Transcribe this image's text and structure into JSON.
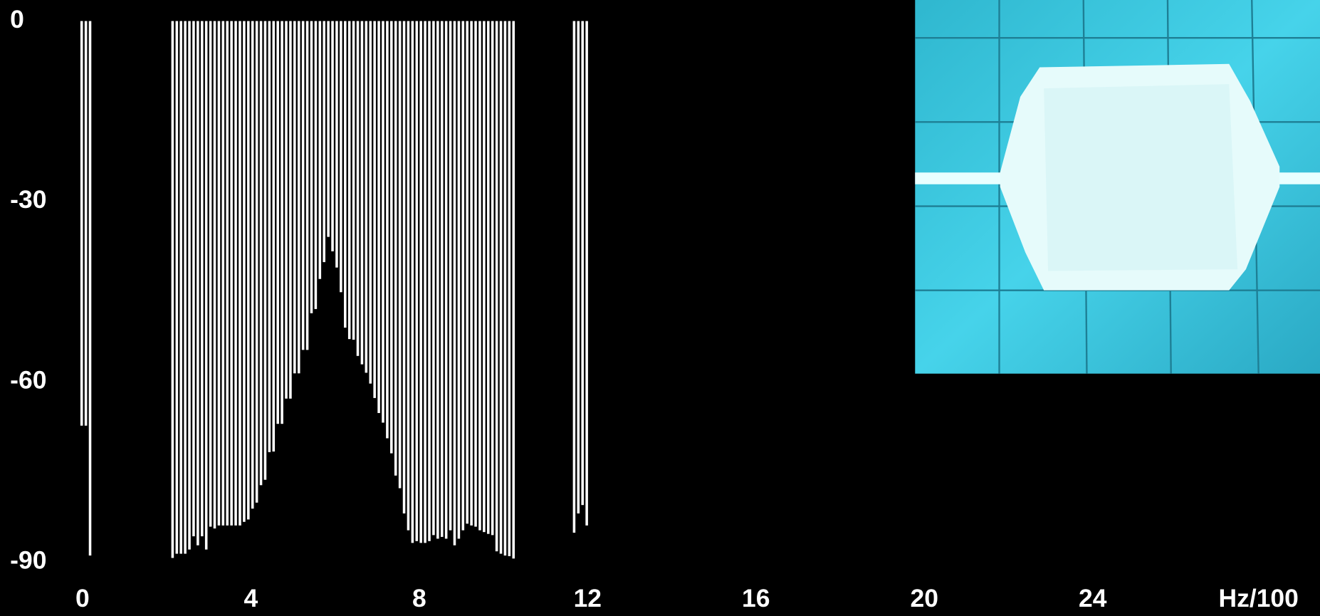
{
  "chart_data": {
    "type": "bar",
    "color": "#ffffff",
    "x_label": "Hz/100",
    "xlim": [
      -1.96,
      29.4
    ],
    "xticks": [
      0,
      4,
      8,
      12,
      16,
      20,
      24
    ],
    "ylim": [
      -90,
      0
    ],
    "yticks": [
      0,
      -30,
      -60,
      -90
    ],
    "x": [
      -0.02,
      0.08,
      0.18,
      2.14,
      2.24,
      2.34,
      2.44,
      2.54,
      2.64,
      2.74,
      2.84,
      2.94,
      3.04,
      3.14,
      3.24,
      3.34,
      3.44,
      3.54,
      3.64,
      3.74,
      3.84,
      3.94,
      4.04,
      4.14,
      4.24,
      4.34,
      4.44,
      4.54,
      4.64,
      4.74,
      4.84,
      4.94,
      5.04,
      5.14,
      5.24,
      5.34,
      5.44,
      5.54,
      5.64,
      5.74,
      5.84,
      5.94,
      6.04,
      6.14,
      6.24,
      6.34,
      6.44,
      6.54,
      6.64,
      6.74,
      6.84,
      6.94,
      7.04,
      7.14,
      7.24,
      7.34,
      7.44,
      7.54,
      7.64,
      7.74,
      7.84,
      7.94,
      8.04,
      8.14,
      8.24,
      8.34,
      8.44,
      8.54,
      8.64,
      8.74,
      8.84,
      8.94,
      9.04,
      9.14,
      9.24,
      9.34,
      9.44,
      9.54,
      9.64,
      9.74,
      9.84,
      9.94,
      10.04,
      10.14,
      10.24,
      11.68,
      11.78,
      11.88,
      11.98
    ],
    "values": [
      -67.3,
      -67.3,
      -88.9,
      -89.3,
      -88.6,
      -88.6,
      -88.6,
      -87.9,
      -85.7,
      -87.2,
      -85.7,
      -87.9,
      -84.1,
      -84.4,
      -83.9,
      -83.9,
      -83.9,
      -83.9,
      -83.9,
      -83.9,
      -83.3,
      -82.9,
      -81.1,
      -80.1,
      -77.2,
      -76.3,
      -71.7,
      -71.6,
      -67.0,
      -67.0,
      -62.8,
      -62.8,
      -58.6,
      -58.6,
      -54.7,
      -54.7,
      -48.6,
      -47.9,
      -42.9,
      -40.1,
      -35.9,
      -38.3,
      -41.0,
      -45.1,
      -51.0,
      -52.9,
      -53.0,
      -55.7,
      -57.1,
      -58.5,
      -60.3,
      -62.7,
      -65.2,
      -66.8,
      -69.4,
      -71.9,
      -75.6,
      -77.7,
      -81.9,
      -84.7,
      -86.8,
      -86.5,
      -86.8,
      -86.8,
      -86.5,
      -85.5,
      -86.1,
      -85.8,
      -86.1,
      -84.7,
      -87.2,
      -86.1,
      -84.7,
      -83.6,
      -83.9,
      -84.1,
      -84.7,
      -85.0,
      -85.3,
      -85.5,
      -88.2,
      -88.6,
      -88.9,
      -89.0,
      -89.4,
      -85.1,
      -81.9,
      -80.5,
      -83.9
    ]
  }
}
